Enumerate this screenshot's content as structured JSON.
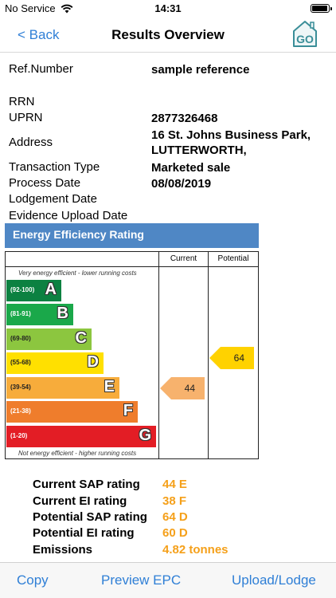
{
  "status_bar": {
    "carrier": "No Service",
    "time": "14:31"
  },
  "nav": {
    "back_label": "< Back",
    "title": "Results Overview",
    "logo_text": "GO"
  },
  "fields": [
    {
      "label": "Ref.Number",
      "value": "sample reference"
    },
    {
      "label": "RRN",
      "value": ""
    },
    {
      "label": "UPRN",
      "value": "2877326468"
    },
    {
      "label": "Address",
      "value": "16 St. Johns Business Park, LUTTERWORTH,"
    },
    {
      "label": "Transaction Type",
      "value": "Marketed sale"
    },
    {
      "label": "Process Date",
      "value": "08/08/2019"
    },
    {
      "label": "Lodgement Date",
      "value": ""
    },
    {
      "label": "Evidence Upload Date",
      "value": ""
    }
  ],
  "rating": {
    "title": "Energy Efficiency Rating",
    "col_current": "Current",
    "col_potential": "Potential",
    "top_note": "Very energy efficient - lower running costs",
    "bottom_note": "Not energy efficient - higher running costs",
    "bands": [
      {
        "range": "(92-100)",
        "letter": "A",
        "color": "#0c8141"
      },
      {
        "range": "(81-91)",
        "letter": "B",
        "color": "#1aa84a"
      },
      {
        "range": "(69-80)",
        "letter": "C",
        "color": "#8cc63f"
      },
      {
        "range": "(55-68)",
        "letter": "D",
        "color": "#ffe000"
      },
      {
        "range": "(39-54)",
        "letter": "E",
        "color": "#f7ac3b"
      },
      {
        "range": "(21-38)",
        "letter": "F",
        "color": "#ef7d2c"
      },
      {
        "range": "(1-20)",
        "letter": "G",
        "color": "#e31d25"
      }
    ],
    "current": {
      "value": "44",
      "band": "E",
      "color": "#f7b26d"
    },
    "potential": {
      "value": "64",
      "band": "D",
      "color": "#ffd200"
    }
  },
  "summary": [
    {
      "label": "Current SAP rating",
      "value": "44 E"
    },
    {
      "label": "Current EI rating",
      "value": "38 F"
    },
    {
      "label": "Potential SAP rating",
      "value": "64 D"
    },
    {
      "label": "Potential EI rating",
      "value": "60 D"
    },
    {
      "label": "Emissions",
      "value": "4.82 tonnes"
    }
  ],
  "toolbar": {
    "copy_label": "Copy",
    "preview_label": "Preview EPC",
    "upload_label": "Upload/Lodge"
  }
}
